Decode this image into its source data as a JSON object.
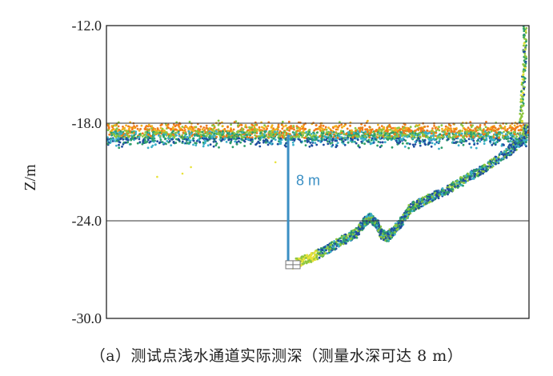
{
  "chart_data": {
    "type": "scatter",
    "ylabel": "Z/m",
    "xlabel": "",
    "ylim": [
      -30.0,
      -12.0
    ],
    "yticks": [
      "-12.0",
      "-18.0",
      "-24.0",
      "-30.0"
    ],
    "grid": "horizontal lines at -18.0 and -24.0",
    "annotation": {
      "text": "8 m",
      "from_z": -18.7,
      "to_z": -26.7,
      "x_fraction": 0.43,
      "color": "#3a8fc4"
    },
    "series": [
      {
        "description": "water surface point band",
        "x_range": [
          0.0,
          1.0
        ],
        "z_center": -18.7,
        "z_spread": 0.7
      },
      {
        "description": "river bed profile",
        "points": [
          [
            0.44,
            -26.7
          ],
          [
            0.48,
            -26.3
          ],
          [
            0.52,
            -25.8
          ],
          [
            0.56,
            -25.2
          ],
          [
            0.59,
            -24.8
          ],
          [
            0.61,
            -24.1
          ],
          [
            0.625,
            -23.8
          ],
          [
            0.64,
            -24.2
          ],
          [
            0.65,
            -24.8
          ],
          [
            0.665,
            -25.0
          ],
          [
            0.68,
            -24.6
          ],
          [
            0.7,
            -24.0
          ],
          [
            0.72,
            -23.2
          ],
          [
            0.76,
            -22.7
          ],
          [
            0.8,
            -22.2
          ],
          [
            0.84,
            -21.6
          ],
          [
            0.88,
            -21.0
          ],
          [
            0.92,
            -20.3
          ],
          [
            0.96,
            -19.6
          ],
          [
            0.985,
            -19.0
          ],
          [
            0.995,
            -18.2
          ]
        ]
      },
      {
        "description": "bank wall",
        "points": [
          [
            0.99,
            -18.0
          ],
          [
            0.995,
            -16.0
          ],
          [
            1.0,
            -14.0
          ],
          [
            1.0,
            -12.0
          ]
        ]
      }
    ],
    "colors": [
      "#f07c1a",
      "#8cc63f",
      "#2e9e6b",
      "#3bb0c9",
      "#1f4e9e",
      "#e8e23a",
      "#f2b21c"
    ]
  },
  "caption": "（a）测试点浅水通道实际测深（测量水深可达 8 m）"
}
